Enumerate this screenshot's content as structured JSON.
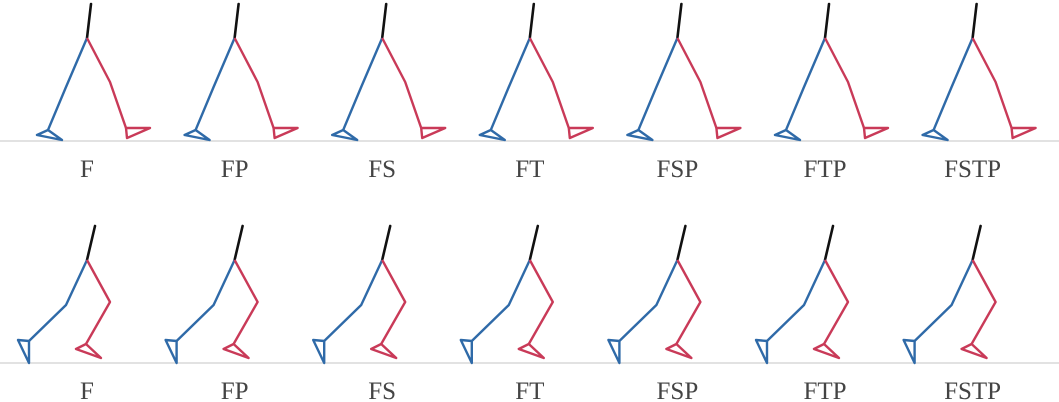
{
  "rows": [
    {
      "labels": [
        "F",
        "FP",
        "FS",
        "FT",
        "FSP",
        "FTP",
        "FSTP"
      ]
    },
    {
      "labels": [
        "F",
        "FP",
        "FS",
        "FT",
        "FSP",
        "FTP",
        "FSTP"
      ]
    }
  ]
}
